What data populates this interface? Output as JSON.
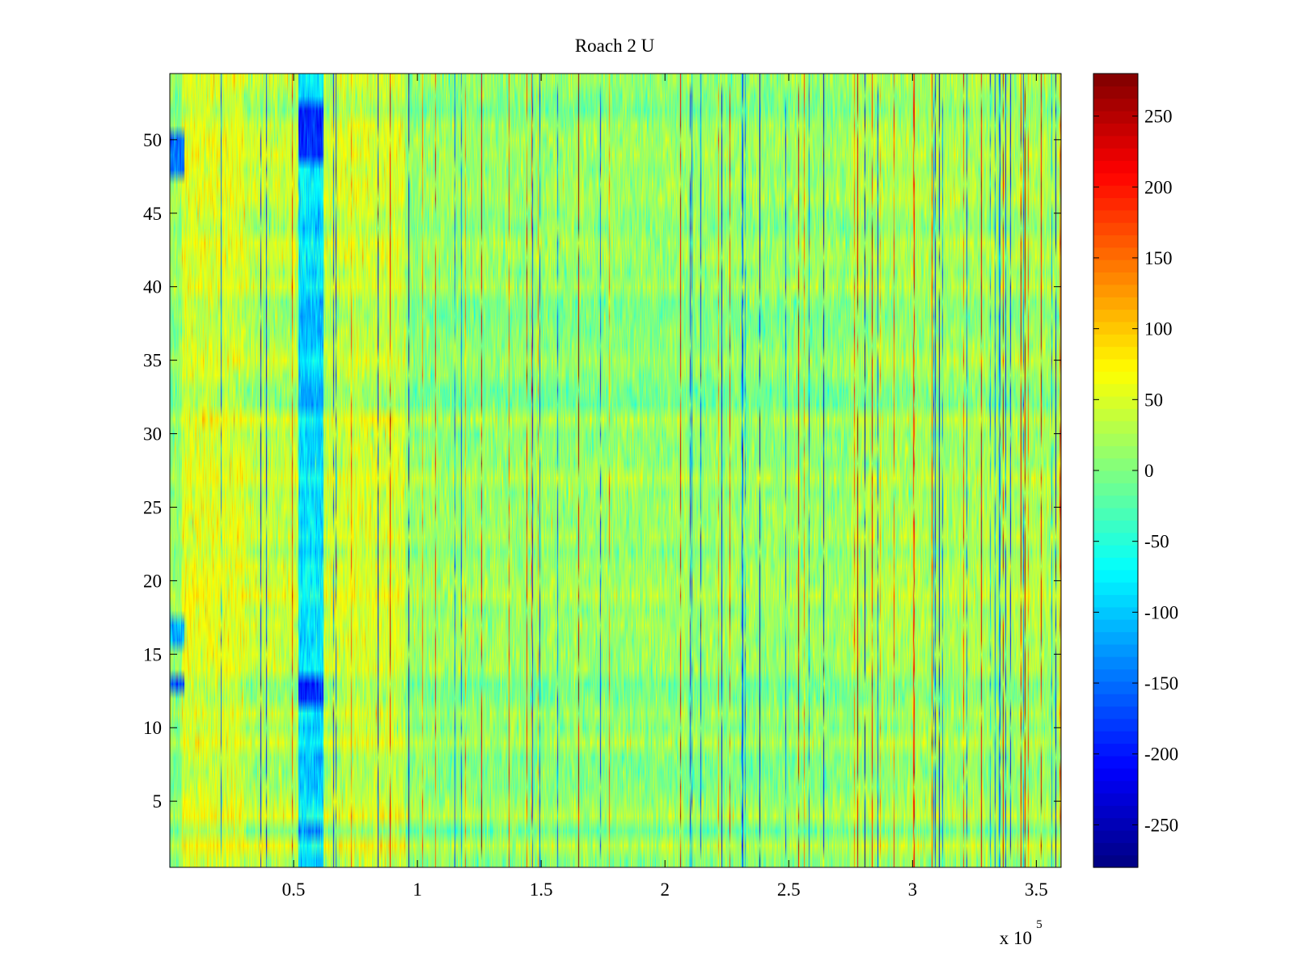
{
  "chart_data": {
    "type": "heatmap",
    "title": "Roach 2 U",
    "xlabel": "",
    "ylabel": "",
    "x_scale_label": "x 10",
    "x_scale_exponent": "5",
    "xlim": [
      0,
      360000
    ],
    "ylim": [
      0.5,
      54.5
    ],
    "x_ticks": [
      50000,
      100000,
      150000,
      200000,
      250000,
      300000,
      350000
    ],
    "x_tick_labels": [
      "0.5",
      "1",
      "1.5",
      "2",
      "2.5",
      "3",
      "3.5"
    ],
    "y_ticks": [
      5,
      10,
      15,
      20,
      25,
      30,
      35,
      40,
      45,
      50
    ],
    "y_tick_labels": [
      "5",
      "10",
      "15",
      "20",
      "25",
      "30",
      "35",
      "40",
      "45",
      "50"
    ],
    "rows": 54,
    "colormap": "jet",
    "clim": [
      -280,
      280
    ],
    "colorbar": {
      "ticks": [
        -250,
        -200,
        -150,
        -100,
        -50,
        0,
        50,
        100,
        150,
        200,
        250
      ],
      "tick_labels": [
        "-250",
        "-200",
        "-150",
        "-100",
        "-50",
        "0",
        "50",
        "100",
        "150",
        "200",
        "250"
      ]
    },
    "grid": false,
    "legend": "none",
    "features": {
      "background_mean": 10,
      "warm_band_x": [
        5000,
        95000
      ],
      "warm_band_mean": 50,
      "cold_band_x": [
        52000,
        62000
      ],
      "cold_band_mean": -90,
      "cold_spots": [
        {
          "x": [
            0,
            6000
          ],
          "rows": [
            48,
            49,
            50
          ],
          "value": -150
        },
        {
          "x": [
            0,
            6000
          ],
          "rows": [
            16,
            17
          ],
          "value": -120
        },
        {
          "x": [
            0,
            6000
          ],
          "rows": [
            13
          ],
          "value": -170
        },
        {
          "x": [
            52000,
            62000
          ],
          "rows": [
            49,
            50,
            51,
            52
          ],
          "value": -190
        },
        {
          "x": [
            52000,
            62000
          ],
          "rows": [
            12,
            13
          ],
          "value": -190
        }
      ],
      "dense_streak_region_x": [
        275000,
        360000
      ]
    }
  }
}
